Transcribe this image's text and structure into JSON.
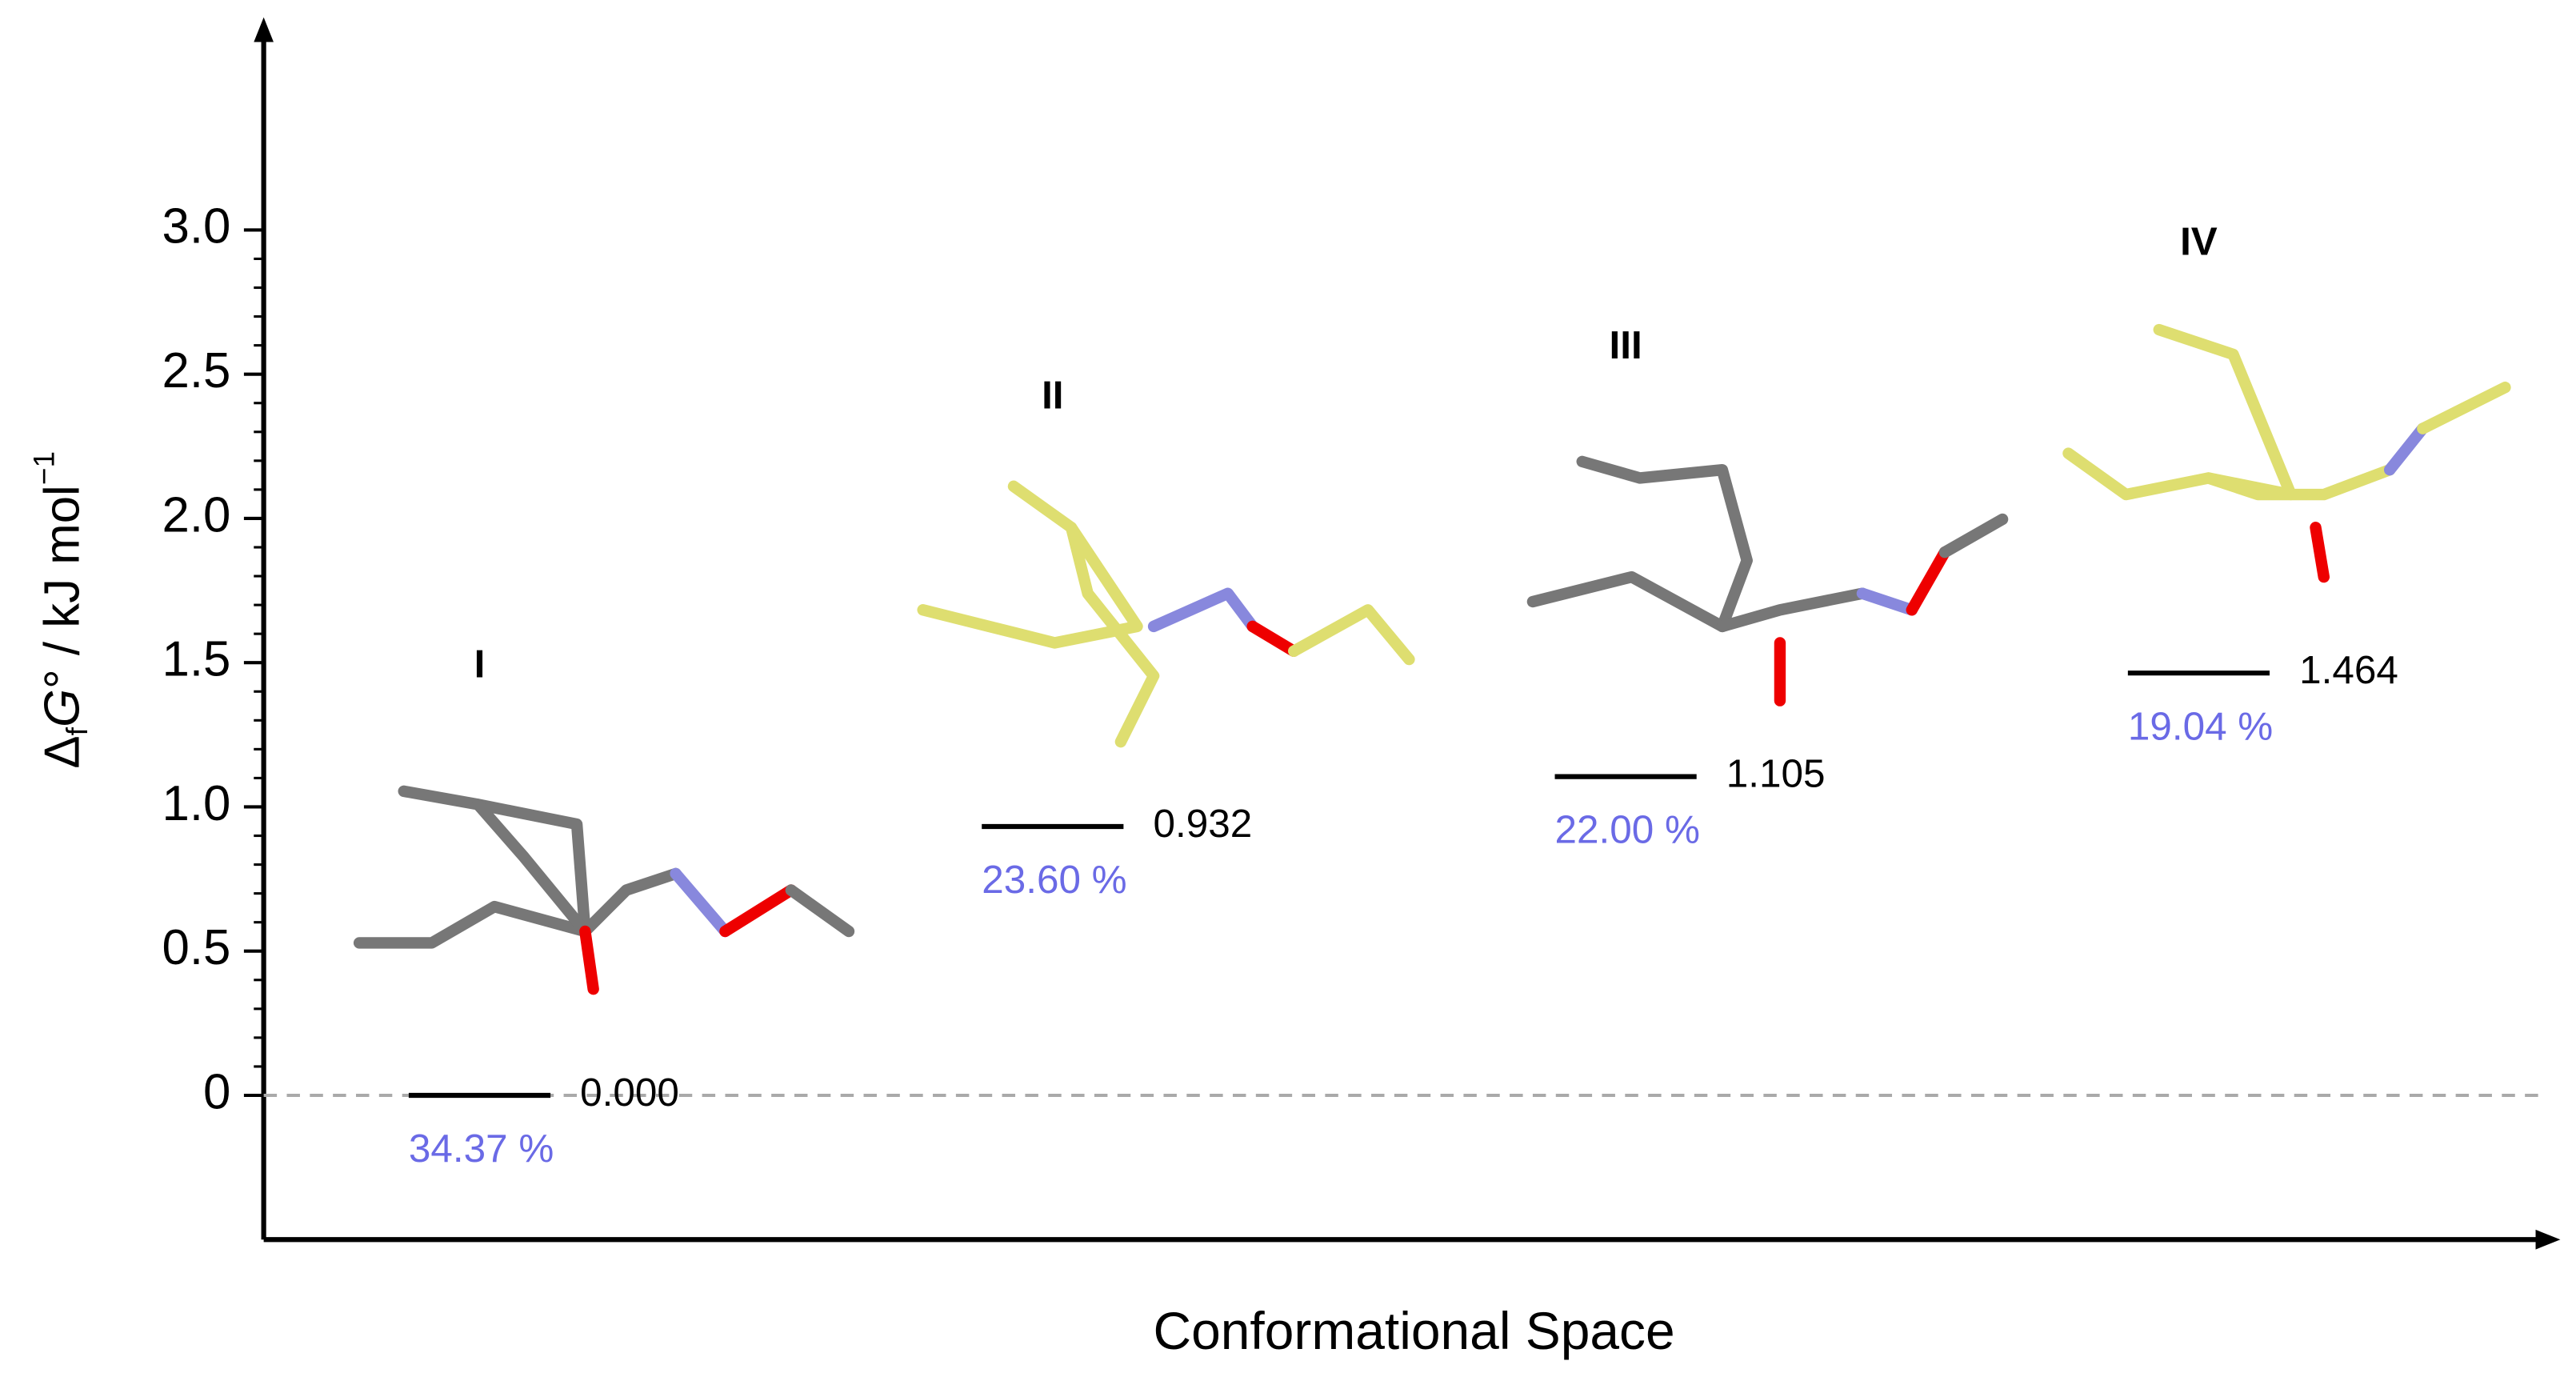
{
  "chart_data": {
    "type": "energy-level",
    "ylabel_parts": [
      "Δ",
      "f",
      "G",
      "° / kJ mol",
      "−1"
    ],
    "xlabel": "Conformational Space",
    "categories": [
      "I",
      "II",
      "III",
      "IV"
    ],
    "values": [
      0.0,
      0.932,
      1.105,
      1.464
    ],
    "value_labels": [
      "0.000",
      "0.932",
      "1.105",
      "1.464"
    ],
    "populations": [
      34.37,
      23.6,
      22.0,
      19.04
    ],
    "population_labels": [
      "34.37 %",
      "23.60 %",
      "22.00 %",
      "19.04 %"
    ],
    "color": "#000000",
    "population_color": "#6a6ae6",
    "ylim": [
      -0.5,
      3.7
    ],
    "yticks": [
      0,
      0.5,
      {
        "value": 1,
        "label": "1.0"
      },
      1.5,
      {
        "value": 2,
        "label": "2.0"
      },
      2.5,
      {
        "value": 3,
        "label": "3.0"
      }
    ],
    "zero_line": true
  }
}
